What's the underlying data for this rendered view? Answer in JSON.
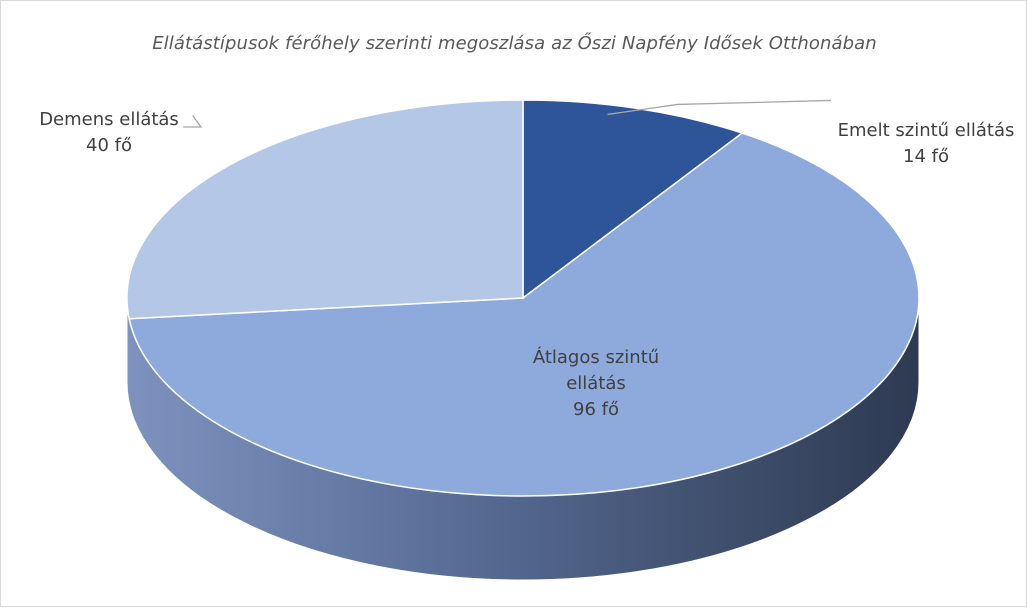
{
  "chart_data": {
    "type": "pie",
    "variant": "3d",
    "title": "Ellátástípusok férőhely szerinti megoszlása az Őszi Napfény Idősek Otthonában",
    "slices": [
      {
        "label": "Emelt szintű ellátás",
        "value": 14,
        "value_label": "14 fő",
        "color": "#2E5597"
      },
      {
        "label": "Átlagos szintű ellátás",
        "label_lines": [
          "Átlagos szintű",
          "ellátás"
        ],
        "value": 96,
        "value_label": "96 fő",
        "color": "#8EA9DB"
      },
      {
        "label": "Demens ellátás",
        "value": 40,
        "value_label": "40 fő",
        "color": "#B4C7E7"
      }
    ],
    "start_angle_deg": 0,
    "direction": "clockwise",
    "legend": "none",
    "data_labels": true
  }
}
